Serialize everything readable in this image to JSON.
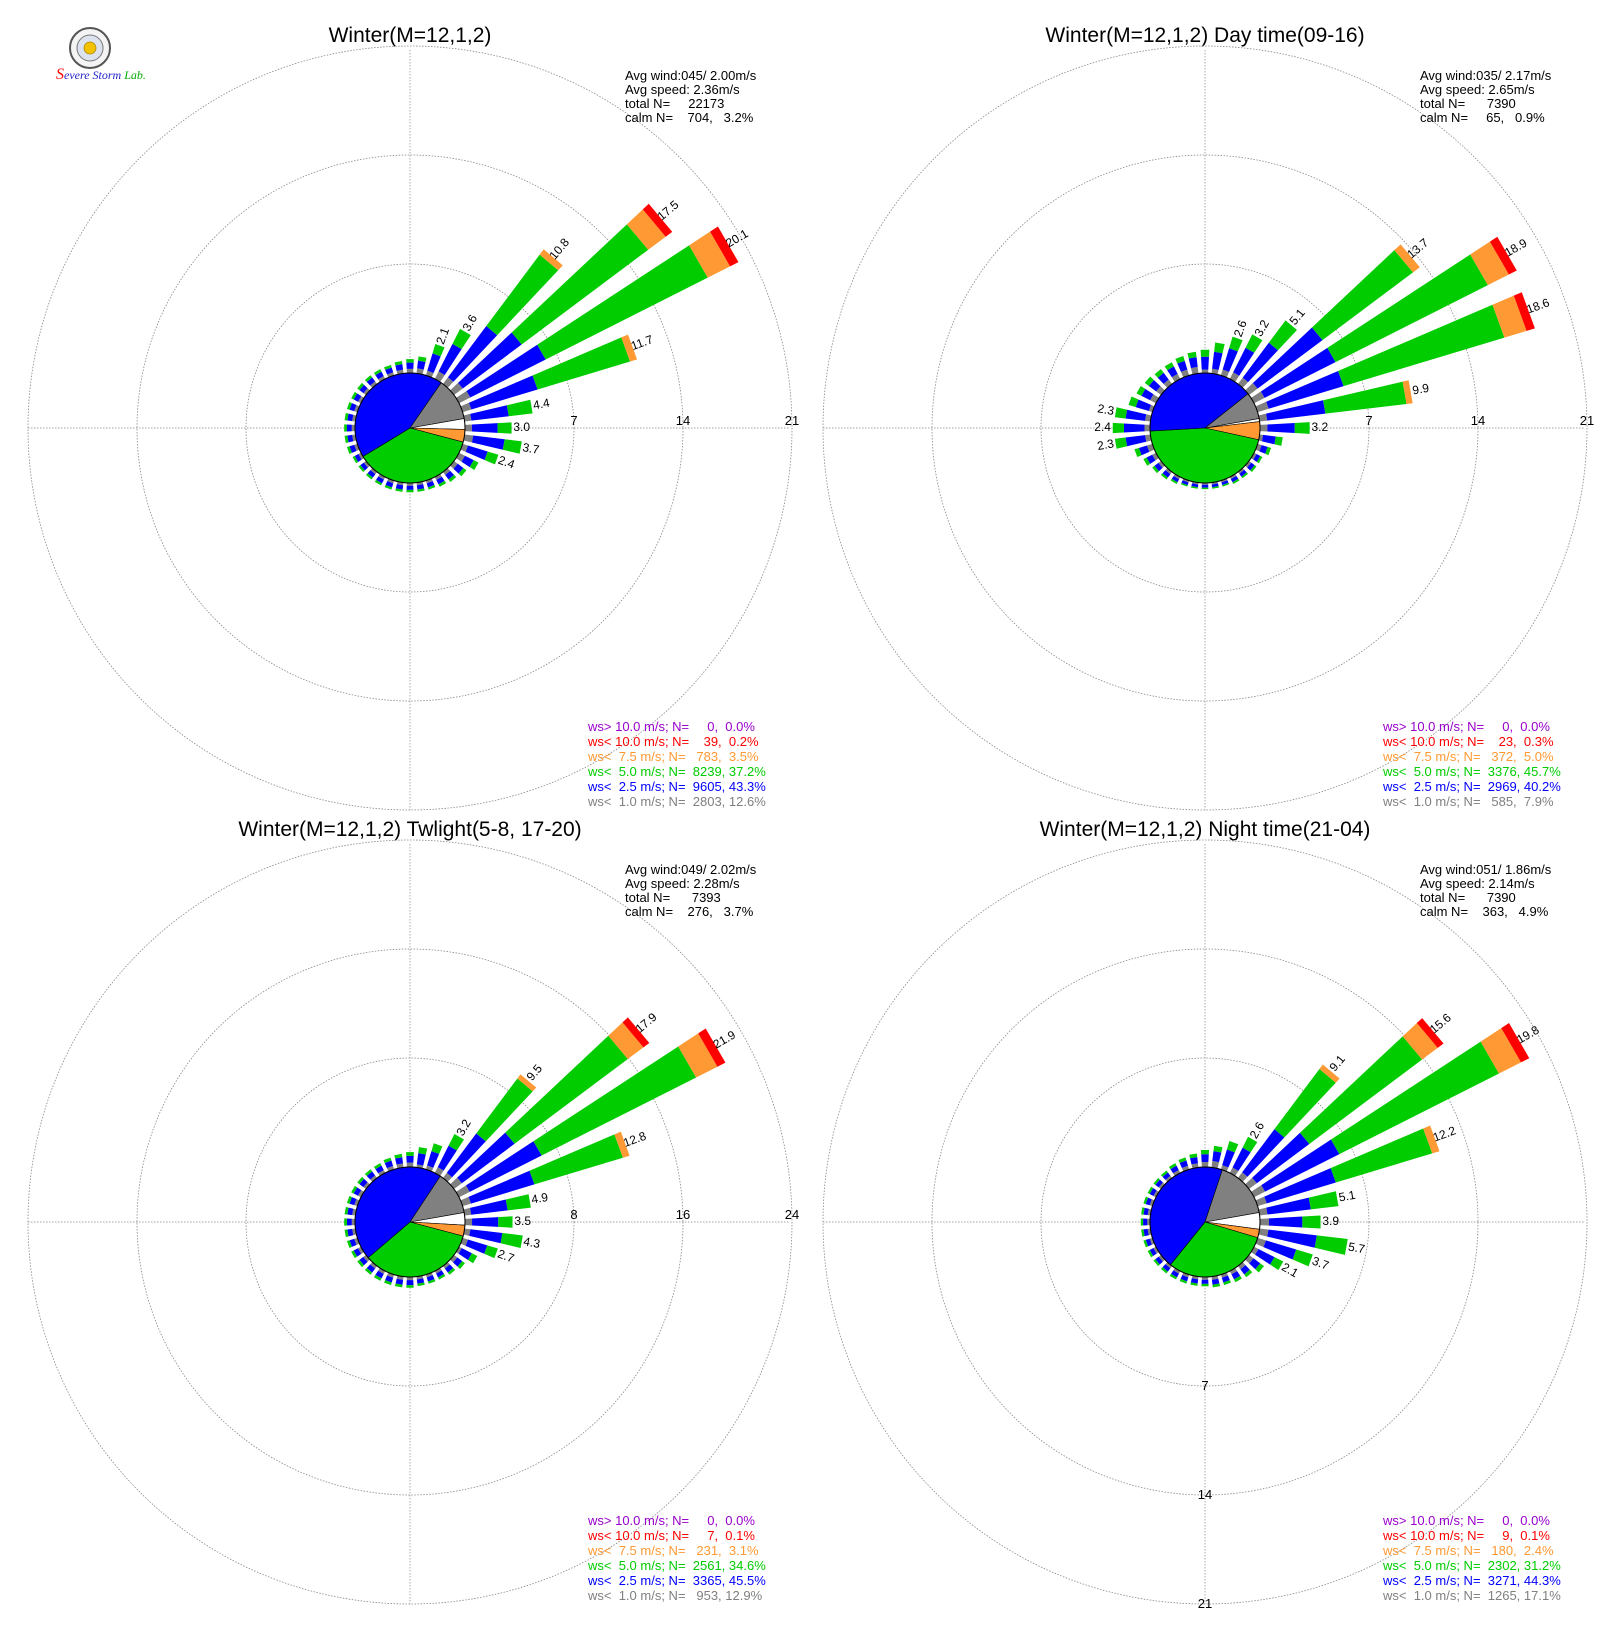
{
  "logo": {
    "text": "Severe Storm Lab."
  },
  "colors": {
    "calm": "#ffffff",
    "lt1": "#808080",
    "lt2_5": "#0000ff",
    "lt5": "#00cc00",
    "lt7_5": "#ff9933",
    "lt10": "#ff0000",
    "gt10": "#9900cc"
  },
  "chart_data": [
    {
      "type": "windrose",
      "title": "Winter(M=12,1,2)",
      "stats": [
        "Avg wind:045/ 2.00m/s",
        "Avg speed: 2.36m/s",
        "total N=     22173",
        "calm N=    704,   3.2%"
      ],
      "rings": [
        7,
        14,
        21
      ],
      "ring_labels": [
        "7",
        "14",
        "21"
      ],
      "calm_pct": 3.2,
      "pie": [
        12.6,
        43.3,
        37.2,
        3.5,
        0.2,
        0.0
      ],
      "bars": [
        {
          "dir": 0,
          "v": 0.9
        },
        {
          "dir": 10,
          "v": 1.1
        },
        {
          "dir": 20,
          "v": 2.1,
          "label": "2.1"
        },
        {
          "dir": 30,
          "v": 3.6,
          "label": "3.6"
        },
        {
          "dir": 40,
          "v": 10.8,
          "label": "10.8"
        },
        {
          "dir": 50,
          "v": 17.5,
          "label": "17.5"
        },
        {
          "dir": 60,
          "v": 20.1,
          "label": "20.1"
        },
        {
          "dir": 70,
          "v": 11.7,
          "label": "11.7"
        },
        {
          "dir": 80,
          "v": 4.4,
          "label": "4.4"
        },
        {
          "dir": 90,
          "v": 3.0,
          "label": "3.0"
        },
        {
          "dir": 100,
          "v": 3.7,
          "label": "3.7"
        },
        {
          "dir": 110,
          "v": 2.4,
          "label": "2.4"
        },
        {
          "dir": 120,
          "v": 1.4
        },
        {
          "dir": 130,
          "v": 1.0
        },
        {
          "dir": 140,
          "v": 0.8
        },
        {
          "dir": 150,
          "v": 0.7
        },
        {
          "dir": 160,
          "v": 0.6
        },
        {
          "dir": 170,
          "v": 0.6
        },
        {
          "dir": 180,
          "v": 0.6
        },
        {
          "dir": 190,
          "v": 0.6
        },
        {
          "dir": 200,
          "v": 0.6
        },
        {
          "dir": 210,
          "v": 0.6
        },
        {
          "dir": 220,
          "v": 0.6
        },
        {
          "dir": 230,
          "v": 0.6
        },
        {
          "dir": 240,
          "v": 0.6
        },
        {
          "dir": 250,
          "v": 0.7
        },
        {
          "dir": 260,
          "v": 0.7
        },
        {
          "dir": 270,
          "v": 0.7
        },
        {
          "dir": 280,
          "v": 0.7
        },
        {
          "dir": 290,
          "v": 0.7
        },
        {
          "dir": 300,
          "v": 0.7
        },
        {
          "dir": 310,
          "v": 0.7
        },
        {
          "dir": 320,
          "v": 0.7
        },
        {
          "dir": 330,
          "v": 0.7
        },
        {
          "dir": 340,
          "v": 0.7
        },
        {
          "dir": 350,
          "v": 0.8
        }
      ],
      "legend": [
        "ws> 10.0 m/s; N=     0,  0.0%",
        "ws< 10.0 m/s; N=    39,  0.2%",
        "ws<  7.5 m/s; N=   783,  3.5%",
        "ws<  5.0 m/s; N=  8239, 37.2%",
        "ws<  2.5 m/s; N=  9605, 43.3%",
        "ws<  1.0 m/s; N=  2803, 12.6%"
      ]
    },
    {
      "type": "windrose",
      "title": "Winter(M=12,1,2) Day time(09-16)",
      "stats": [
        "Avg wind:035/ 2.17m/s",
        "Avg speed: 2.65m/s",
        "total N=      7390",
        "calm N=     65,   0.9%"
      ],
      "rings": [
        7,
        14,
        21
      ],
      "ring_labels": [
        "7",
        "14",
        "21"
      ],
      "calm_pct": 0.9,
      "pie": [
        7.9,
        40.2,
        45.7,
        5.0,
        0.3,
        0.0
      ],
      "bars": [
        {
          "dir": 0,
          "v": 1.5
        },
        {
          "dir": 10,
          "v": 2.0
        },
        {
          "dir": 20,
          "v": 2.6,
          "label": "2.6"
        },
        {
          "dir": 30,
          "v": 3.2,
          "label": "3.2"
        },
        {
          "dir": 40,
          "v": 5.1,
          "label": "5.1"
        },
        {
          "dir": 50,
          "v": 13.7,
          "label": "13.7"
        },
        {
          "dir": 60,
          "v": 18.9,
          "label": "18.9"
        },
        {
          "dir": 70,
          "v": 18.6,
          "label": "18.6"
        },
        {
          "dir": 80,
          "v": 9.9,
          "label": "9.9"
        },
        {
          "dir": 90,
          "v": 3.2,
          "label": "3.2"
        },
        {
          "dir": 100,
          "v": 1.5
        },
        {
          "dir": 110,
          "v": 0.9
        },
        {
          "dir": 120,
          "v": 0.6
        },
        {
          "dir": 130,
          "v": 0.6
        },
        {
          "dir": 140,
          "v": 0.5
        },
        {
          "dir": 150,
          "v": 0.5
        },
        {
          "dir": 160,
          "v": 0.4
        },
        {
          "dir": 170,
          "v": 0.4
        },
        {
          "dir": 180,
          "v": 0.4
        },
        {
          "dir": 190,
          "v": 0.4
        },
        {
          "dir": 200,
          "v": 0.4
        },
        {
          "dir": 210,
          "v": 0.5
        },
        {
          "dir": 220,
          "v": 0.6
        },
        {
          "dir": 230,
          "v": 0.7
        },
        {
          "dir": 240,
          "v": 0.9
        },
        {
          "dir": 250,
          "v": 1.2
        },
        {
          "dir": 260,
          "v": 2.3,
          "label": "2.3"
        },
        {
          "dir": 270,
          "v": 2.4,
          "label": "2.4"
        },
        {
          "dir": 280,
          "v": 2.3,
          "label": "2.3"
        },
        {
          "dir": 290,
          "v": 1.6
        },
        {
          "dir": 300,
          "v": 1.4
        },
        {
          "dir": 310,
          "v": 1.3
        },
        {
          "dir": 320,
          "v": 1.2
        },
        {
          "dir": 330,
          "v": 1.2
        },
        {
          "dir": 340,
          "v": 1.3
        },
        {
          "dir": 350,
          "v": 1.4
        }
      ],
      "legend": [
        "ws> 10.0 m/s; N=     0,  0.0%",
        "ws< 10.0 m/s; N=    23,  0.3%",
        "ws<  7.5 m/s; N=   372,  5.0%",
        "ws<  5.0 m/s; N=  3376, 45.7%",
        "ws<  2.5 m/s; N=  2969, 40.2%",
        "ws<  1.0 m/s; N=   585,  7.9%"
      ]
    },
    {
      "type": "windrose",
      "title": "Winter(M=12,1,2) Twlight(5-8, 17-20)",
      "stats": [
        "Avg wind:049/ 2.02m/s",
        "Avg speed: 2.28m/s",
        "total N=      7393",
        "calm N=    276,   3.7%"
      ],
      "rings": [
        8,
        16,
        24
      ],
      "ring_labels": [
        "8",
        "16",
        "24"
      ],
      "calm_pct": 3.7,
      "pie": [
        12.9,
        45.5,
        34.6,
        3.1,
        0.1,
        0.0
      ],
      "bars": [
        {
          "dir": 0,
          "v": 1.1
        },
        {
          "dir": 10,
          "v": 1.5
        },
        {
          "dir": 20,
          "v": 2.0
        },
        {
          "dir": 30,
          "v": 3.2,
          "label": "3.2"
        },
        {
          "dir": 40,
          "v": 9.5,
          "label": "9.5"
        },
        {
          "dir": 50,
          "v": 17.9,
          "label": "17.9"
        },
        {
          "dir": 60,
          "v": 21.9,
          "label": "21.9"
        },
        {
          "dir": 70,
          "v": 12.8,
          "label": "12.8"
        },
        {
          "dir": 80,
          "v": 4.9,
          "label": "4.9"
        },
        {
          "dir": 90,
          "v": 3.5,
          "label": "3.5"
        },
        {
          "dir": 100,
          "v": 4.3,
          "label": "4.3"
        },
        {
          "dir": 110,
          "v": 2.7,
          "label": "2.7"
        },
        {
          "dir": 120,
          "v": 1.5
        },
        {
          "dir": 130,
          "v": 1.0
        },
        {
          "dir": 140,
          "v": 0.8
        },
        {
          "dir": 150,
          "v": 0.7
        },
        {
          "dir": 160,
          "v": 0.7
        },
        {
          "dir": 170,
          "v": 0.7
        },
        {
          "dir": 180,
          "v": 0.8
        },
        {
          "dir": 190,
          "v": 0.8
        },
        {
          "dir": 200,
          "v": 0.8
        },
        {
          "dir": 210,
          "v": 0.8
        },
        {
          "dir": 220,
          "v": 0.8
        },
        {
          "dir": 230,
          "v": 0.8
        },
        {
          "dir": 240,
          "v": 0.8
        },
        {
          "dir": 250,
          "v": 0.8
        },
        {
          "dir": 260,
          "v": 0.8
        },
        {
          "dir": 270,
          "v": 0.8
        },
        {
          "dir": 280,
          "v": 0.8
        },
        {
          "dir": 290,
          "v": 0.8
        },
        {
          "dir": 300,
          "v": 0.8
        },
        {
          "dir": 310,
          "v": 0.8
        },
        {
          "dir": 320,
          "v": 0.8
        },
        {
          "dir": 330,
          "v": 0.8
        },
        {
          "dir": 340,
          "v": 0.9
        },
        {
          "dir": 350,
          "v": 1.0
        }
      ],
      "legend": [
        "ws> 10.0 m/s; N=     0,  0.0%",
        "ws< 10.0 m/s; N=     7,  0.1%",
        "ws<  7.5 m/s; N=   231,  3.1%",
        "ws<  5.0 m/s; N=  2561, 34.6%",
        "ws<  2.5 m/s; N=  3365, 45.5%",
        "ws<  1.0 m/s; N=   953, 12.9%"
      ]
    },
    {
      "type": "windrose",
      "title": "Winter(M=12,1,2) Night time(21-04)",
      "stats": [
        "Avg wind:051/ 1.86m/s",
        "Avg speed: 2.14m/s",
        "total N=      7390",
        "calm N=    363,   4.9%"
      ],
      "rings": [
        7,
        14,
        21
      ],
      "ring_labels": [
        "7",
        "14",
        "21"
      ],
      "ring_label_axis": "south",
      "calm_pct": 4.9,
      "pie": [
        17.1,
        44.3,
        31.2,
        2.4,
        0.1,
        0.0
      ],
      "bars": [
        {
          "dir": 0,
          "v": 1.1
        },
        {
          "dir": 10,
          "v": 1.4
        },
        {
          "dir": 20,
          "v": 1.9
        },
        {
          "dir": 30,
          "v": 2.6,
          "label": "2.6"
        },
        {
          "dir": 40,
          "v": 9.1,
          "label": "9.1"
        },
        {
          "dir": 50,
          "v": 15.6,
          "label": "15.6"
        },
        {
          "dir": 60,
          "v": 19.8,
          "label": "19.8"
        },
        {
          "dir": 70,
          "v": 12.2,
          "label": "12.2"
        },
        {
          "dir": 80,
          "v": 5.1,
          "label": "5.1"
        },
        {
          "dir": 90,
          "v": 3.9,
          "label": "3.9"
        },
        {
          "dir": 100,
          "v": 5.7,
          "label": "5.7"
        },
        {
          "dir": 110,
          "v": 3.7,
          "label": "3.7"
        },
        {
          "dir": 120,
          "v": 2.1,
          "label": "2.1"
        },
        {
          "dir": 130,
          "v": 1.2
        },
        {
          "dir": 140,
          "v": 0.9
        },
        {
          "dir": 150,
          "v": 0.8
        },
        {
          "dir": 160,
          "v": 0.7
        },
        {
          "dir": 170,
          "v": 0.7
        },
        {
          "dir": 180,
          "v": 0.6
        },
        {
          "dir": 190,
          "v": 0.6
        },
        {
          "dir": 200,
          "v": 0.6
        },
        {
          "dir": 210,
          "v": 0.6
        },
        {
          "dir": 220,
          "v": 0.6
        },
        {
          "dir": 230,
          "v": 0.6
        },
        {
          "dir": 240,
          "v": 0.6
        },
        {
          "dir": 250,
          "v": 0.6
        },
        {
          "dir": 260,
          "v": 0.6
        },
        {
          "dir": 270,
          "v": 0.6
        },
        {
          "dir": 280,
          "v": 0.6
        },
        {
          "dir": 290,
          "v": 0.6
        },
        {
          "dir": 300,
          "v": 0.6
        },
        {
          "dir": 310,
          "v": 0.6
        },
        {
          "dir": 320,
          "v": 0.6
        },
        {
          "dir": 330,
          "v": 0.7
        },
        {
          "dir": 340,
          "v": 0.8
        },
        {
          "dir": 350,
          "v": 0.9
        }
      ],
      "legend": [
        "ws> 10.0 m/s; N=     0,  0.0%",
        "ws< 10.0 m/s; N=     9,  0.1%",
        "ws<  7.5 m/s; N=   180,  2.4%",
        "ws<  5.0 m/s; N=  2302, 31.2%",
        "ws<  2.5 m/s; N=  3271, 44.3%",
        "ws<  1.0 m/s; N=  1265, 17.1%"
      ]
    }
  ]
}
